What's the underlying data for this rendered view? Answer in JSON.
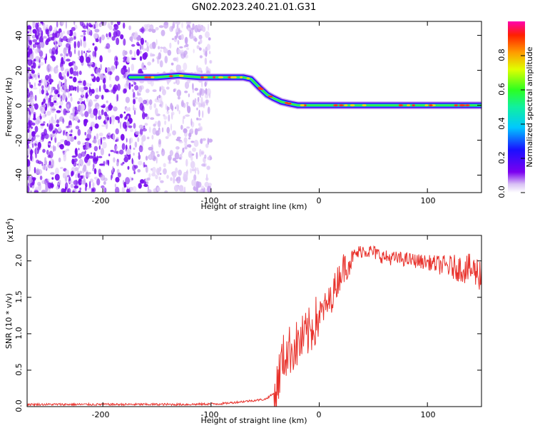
{
  "figure_title": "GN02.2023.240.21.01.G31",
  "chart_data": [
    {
      "type": "heatmap",
      "title": "GN02.2023.240.21.01.G31",
      "xlabel": "Height of straight line (km)",
      "ylabel": "Frequency (Hz)",
      "xlim": [
        -270,
        150
      ],
      "ylim": [
        -50,
        48
      ],
      "x_ticks": [
        "-200",
        "-100",
        "0",
        "100"
      ],
      "y_ticks": [
        "40",
        "20",
        "0",
        "-20",
        "-40"
      ],
      "colorbar": {
        "label": "Normalized spectral amplitude",
        "range": [
          0,
          1
        ],
        "ticks": [
          "0.0",
          "0.2",
          "0.4",
          "0.6",
          "0.8"
        ]
      },
      "ridge": {
        "x": [
          -175,
          -150,
          -130,
          -110,
          -90,
          -70,
          -63,
          -55,
          -48,
          -42,
          -35,
          -28,
          -20,
          0,
          50,
          100,
          150
        ],
        "y": [
          16,
          16,
          17,
          16,
          16,
          16,
          15,
          10,
          6,
          4,
          2,
          1,
          0,
          0,
          0,
          0,
          0
        ]
      },
      "noise_region_x": [
        -270,
        -100
      ]
    },
    {
      "type": "line",
      "xlabel": "Height of straight line (km)",
      "ylabel": "SNR (10 * v/v)",
      "scale_label": "(x10",
      "scale_exponent": "4",
      "scale_suffix": ")",
      "xlim": [
        -270,
        150
      ],
      "ylim": [
        0,
        2.35
      ],
      "x_ticks": [
        "-200",
        "-100",
        "0",
        "100"
      ],
      "y_ticks": [
        "0.0",
        "0.5",
        "1.0",
        "1.5",
        "2.0"
      ],
      "color": "#e8312b",
      "series": [
        {
          "x": [
            -270,
            -200,
            -120,
            -90,
            -70,
            -50,
            -40,
            -35,
            -30,
            -20,
            -10,
            0,
            10,
            20,
            30,
            40,
            50,
            60,
            80,
            100,
            120,
            140,
            150
          ],
          "y": [
            0.03,
            0.03,
            0.03,
            0.04,
            0.07,
            0.1,
            0.2,
            0.6,
            0.75,
            0.85,
            1.0,
            1.25,
            1.45,
            1.85,
            2.05,
            2.15,
            2.12,
            2.05,
            2.02,
            1.98,
            1.92,
            1.88,
            1.82
          ]
        }
      ]
    }
  ]
}
